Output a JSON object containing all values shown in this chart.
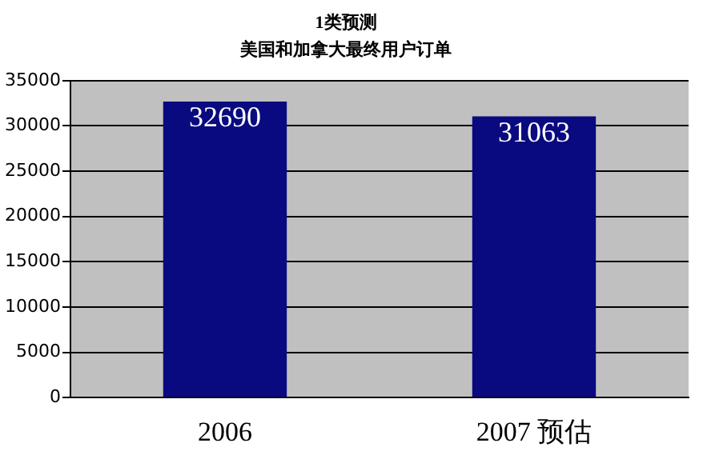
{
  "chart_data": {
    "type": "bar",
    "title": "1类预测",
    "subtitle": "美国和加拿大最终用户订单",
    "categories": [
      "2006",
      "2007 预估"
    ],
    "values": [
      32690,
      31063
    ],
    "color": "#0a0a80",
    "ylim": [
      0,
      35000
    ],
    "yticks": [
      0,
      5000,
      10000,
      15000,
      20000,
      25000,
      30000,
      35000
    ],
    "grid": "y",
    "data_labels": true,
    "legend": false
  }
}
